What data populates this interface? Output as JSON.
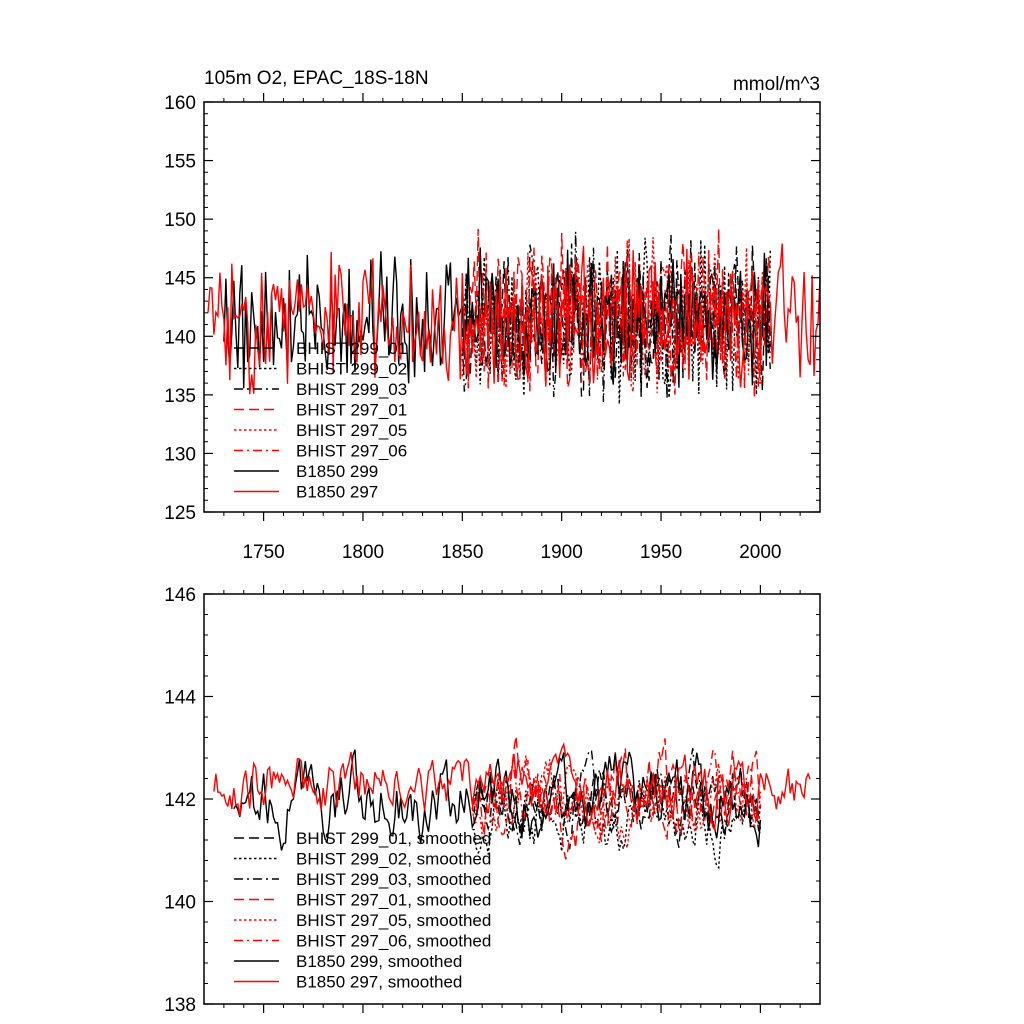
{
  "chart_data": [
    {
      "type": "line",
      "title_left": "105m O2, EPAC_18S-18N",
      "title_right": "mmol/m^3",
      "xlim": [
        1720,
        2030
      ],
      "ylim": [
        125,
        160
      ],
      "x_ticks": [
        1750,
        1800,
        1850,
        1900,
        1950,
        2000
      ],
      "x_tick_labels": [
        "1750",
        "1800",
        "1850",
        "1900",
        "1950",
        "2000"
      ],
      "y_ticks": [
        125,
        130,
        135,
        140,
        145,
        150,
        155,
        160
      ],
      "y_tick_labels": [
        "125",
        "130",
        "135",
        "140",
        "145",
        "150",
        "155",
        "160"
      ],
      "series": [
        {
          "name": "BHIST 299_01",
          "label": "BHIST 299_01",
          "color": "#000000",
          "dash": "long-dash",
          "x_start": 1850,
          "x_end": 2005,
          "base": 141.5,
          "amplitude": 4.2,
          "seed": 11
        },
        {
          "name": "BHIST 299_02",
          "label": "BHIST 299_02",
          "color": "#000000",
          "dash": "dotted",
          "x_start": 1850,
          "x_end": 2005,
          "base": 141.3,
          "amplitude": 4.5,
          "seed": 23
        },
        {
          "name": "BHIST 299_03",
          "label": "BHIST 299_03",
          "color": "#000000",
          "dash": "dash-dot",
          "x_start": 1850,
          "x_end": 2005,
          "base": 141.6,
          "amplitude": 4.6,
          "seed": 37
        },
        {
          "name": "BHIST 297_01",
          "label": "BHIST 297_01",
          "color": "#ff0000",
          "dash": "long-dash",
          "x_start": 1850,
          "x_end": 2005,
          "base": 141.8,
          "amplitude": 4.7,
          "seed": 41
        },
        {
          "name": "BHIST 297_05",
          "label": "BHIST 297_05",
          "color": "#ff0000",
          "dash": "dotted",
          "x_start": 1850,
          "x_end": 2005,
          "base": 141.5,
          "amplitude": 4.4,
          "seed": 53
        },
        {
          "name": "BHIST 297_06",
          "label": "BHIST 297_06",
          "color": "#ff0000",
          "dash": "dash-dot",
          "x_start": 1850,
          "x_end": 2005,
          "base": 141.7,
          "amplitude": 4.3,
          "seed": 67
        },
        {
          "name": "B1850 299",
          "label": "B1850 299",
          "color": "#000000",
          "dash": "solid",
          "x_start": 1730,
          "x_end": 2005,
          "base": 141.5,
          "amplitude": 4.0,
          "seed": 79
        },
        {
          "name": "B1850 297",
          "label": "B1850 297",
          "color": "#ff0000",
          "dash": "solid",
          "x_start": 1722,
          "x_end": 2030,
          "base": 141.5,
          "amplitude": 4.0,
          "seed": 83
        }
      ]
    },
    {
      "type": "line",
      "title_left": "",
      "title_right": "",
      "xlim": [
        1720,
        2030
      ],
      "ylim": [
        138,
        146
      ],
      "x_ticks": [
        1750,
        1800,
        1850,
        1900,
        1950,
        2000
      ],
      "x_tick_labels": [],
      "y_ticks": [
        138,
        140,
        142,
        144,
        146
      ],
      "y_tick_labels": [
        "138",
        "140",
        "142",
        "144",
        "146"
      ],
      "series": [
        {
          "name": "BHIST 299_01, smoothed",
          "label": "BHIST 299_01, smoothed",
          "color": "#000000",
          "dash": "long-dash",
          "x_start": 1855,
          "x_end": 2000,
          "base": 142.0,
          "amplitude": 0.9,
          "seed": 111
        },
        {
          "name": "BHIST 299_02, smoothed",
          "label": "BHIST 299_02, smoothed",
          "color": "#000000",
          "dash": "dotted",
          "x_start": 1855,
          "x_end": 2000,
          "base": 141.6,
          "amplitude": 1.0,
          "seed": 123
        },
        {
          "name": "BHIST 299_03, smoothed",
          "label": "BHIST 299_03, smoothed",
          "color": "#000000",
          "dash": "dash-dot",
          "x_start": 1855,
          "x_end": 2000,
          "base": 142.0,
          "amplitude": 1.0,
          "seed": 137
        },
        {
          "name": "BHIST 297_01, smoothed",
          "label": "BHIST 297_01, smoothed",
          "color": "#ff0000",
          "dash": "long-dash",
          "x_start": 1855,
          "x_end": 2000,
          "base": 142.2,
          "amplitude": 1.3,
          "seed": 141
        },
        {
          "name": "BHIST 297_05, smoothed",
          "label": "BHIST 297_05, smoothed",
          "color": "#ff0000",
          "dash": "dotted",
          "x_start": 1855,
          "x_end": 2000,
          "base": 142.0,
          "amplitude": 1.0,
          "seed": 153
        },
        {
          "name": "BHIST 297_06, smoothed",
          "label": "BHIST 297_06, smoothed",
          "color": "#ff0000",
          "dash": "dash-dot",
          "x_start": 1855,
          "x_end": 2000,
          "base": 142.2,
          "amplitude": 1.0,
          "seed": 167
        },
        {
          "name": "B1850 299, smoothed",
          "label": "B1850 299, smoothed",
          "color": "#000000",
          "dash": "solid",
          "x_start": 1735,
          "x_end": 2000,
          "base": 142.0,
          "amplitude": 1.1,
          "seed": 179
        },
        {
          "name": "B1850 297, smoothed",
          "label": "B1850 297, smoothed",
          "color": "#ff0000",
          "dash": "solid",
          "x_start": 1725,
          "x_end": 2025,
          "base": 142.3,
          "amplitude": 0.9,
          "seed": 183
        }
      ]
    }
  ]
}
